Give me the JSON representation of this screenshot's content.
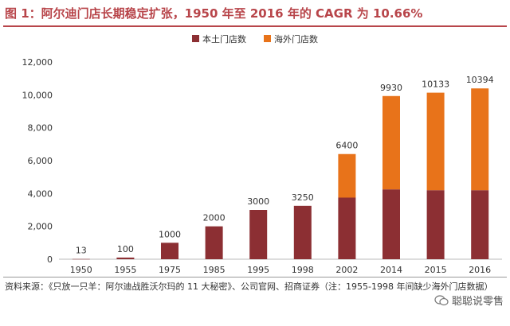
{
  "title": "图 1：阿尔迪门店长期稳定扩张，1950 年至 2016 年的 CAGR 为 10.66%",
  "source": "资料来源：《只放一只羊：阿尔迪战胜沃尔玛的 11 大秘密》、公司官网、招商证券（注：1955-1998 年间缺少海外门店数据）",
  "watermark": "聪聪说零售",
  "colors": {
    "domestic": "#8c2f33",
    "overseas": "#e8731a",
    "title": "#b8454a"
  },
  "chart_data": {
    "type": "bar",
    "stacked": true,
    "categories": [
      "1950",
      "1955",
      "1975",
      "1985",
      "1995",
      "1998",
      "2002",
      "2014",
      "2015",
      "2016"
    ],
    "series": [
      {
        "name": "本土门店数",
        "values": [
          13,
          100,
          1000,
          2000,
          3000,
          3250,
          3750,
          4250,
          4200,
          4200
        ]
      },
      {
        "name": "海外门店数",
        "values": [
          0,
          0,
          0,
          0,
          0,
          0,
          2650,
          5680,
          5933,
          6194
        ]
      }
    ],
    "totals_labels": [
      "13",
      "100",
      "1000",
      "2000",
      "3000",
      "3250",
      "6400",
      "9930",
      "10133",
      "10394"
    ],
    "yticks": [
      "0",
      "2,000",
      "4,000",
      "6,000",
      "8,000",
      "10,000",
      "12,000"
    ],
    "ylim": [
      0,
      12000
    ],
    "legend_position": "top-left"
  }
}
